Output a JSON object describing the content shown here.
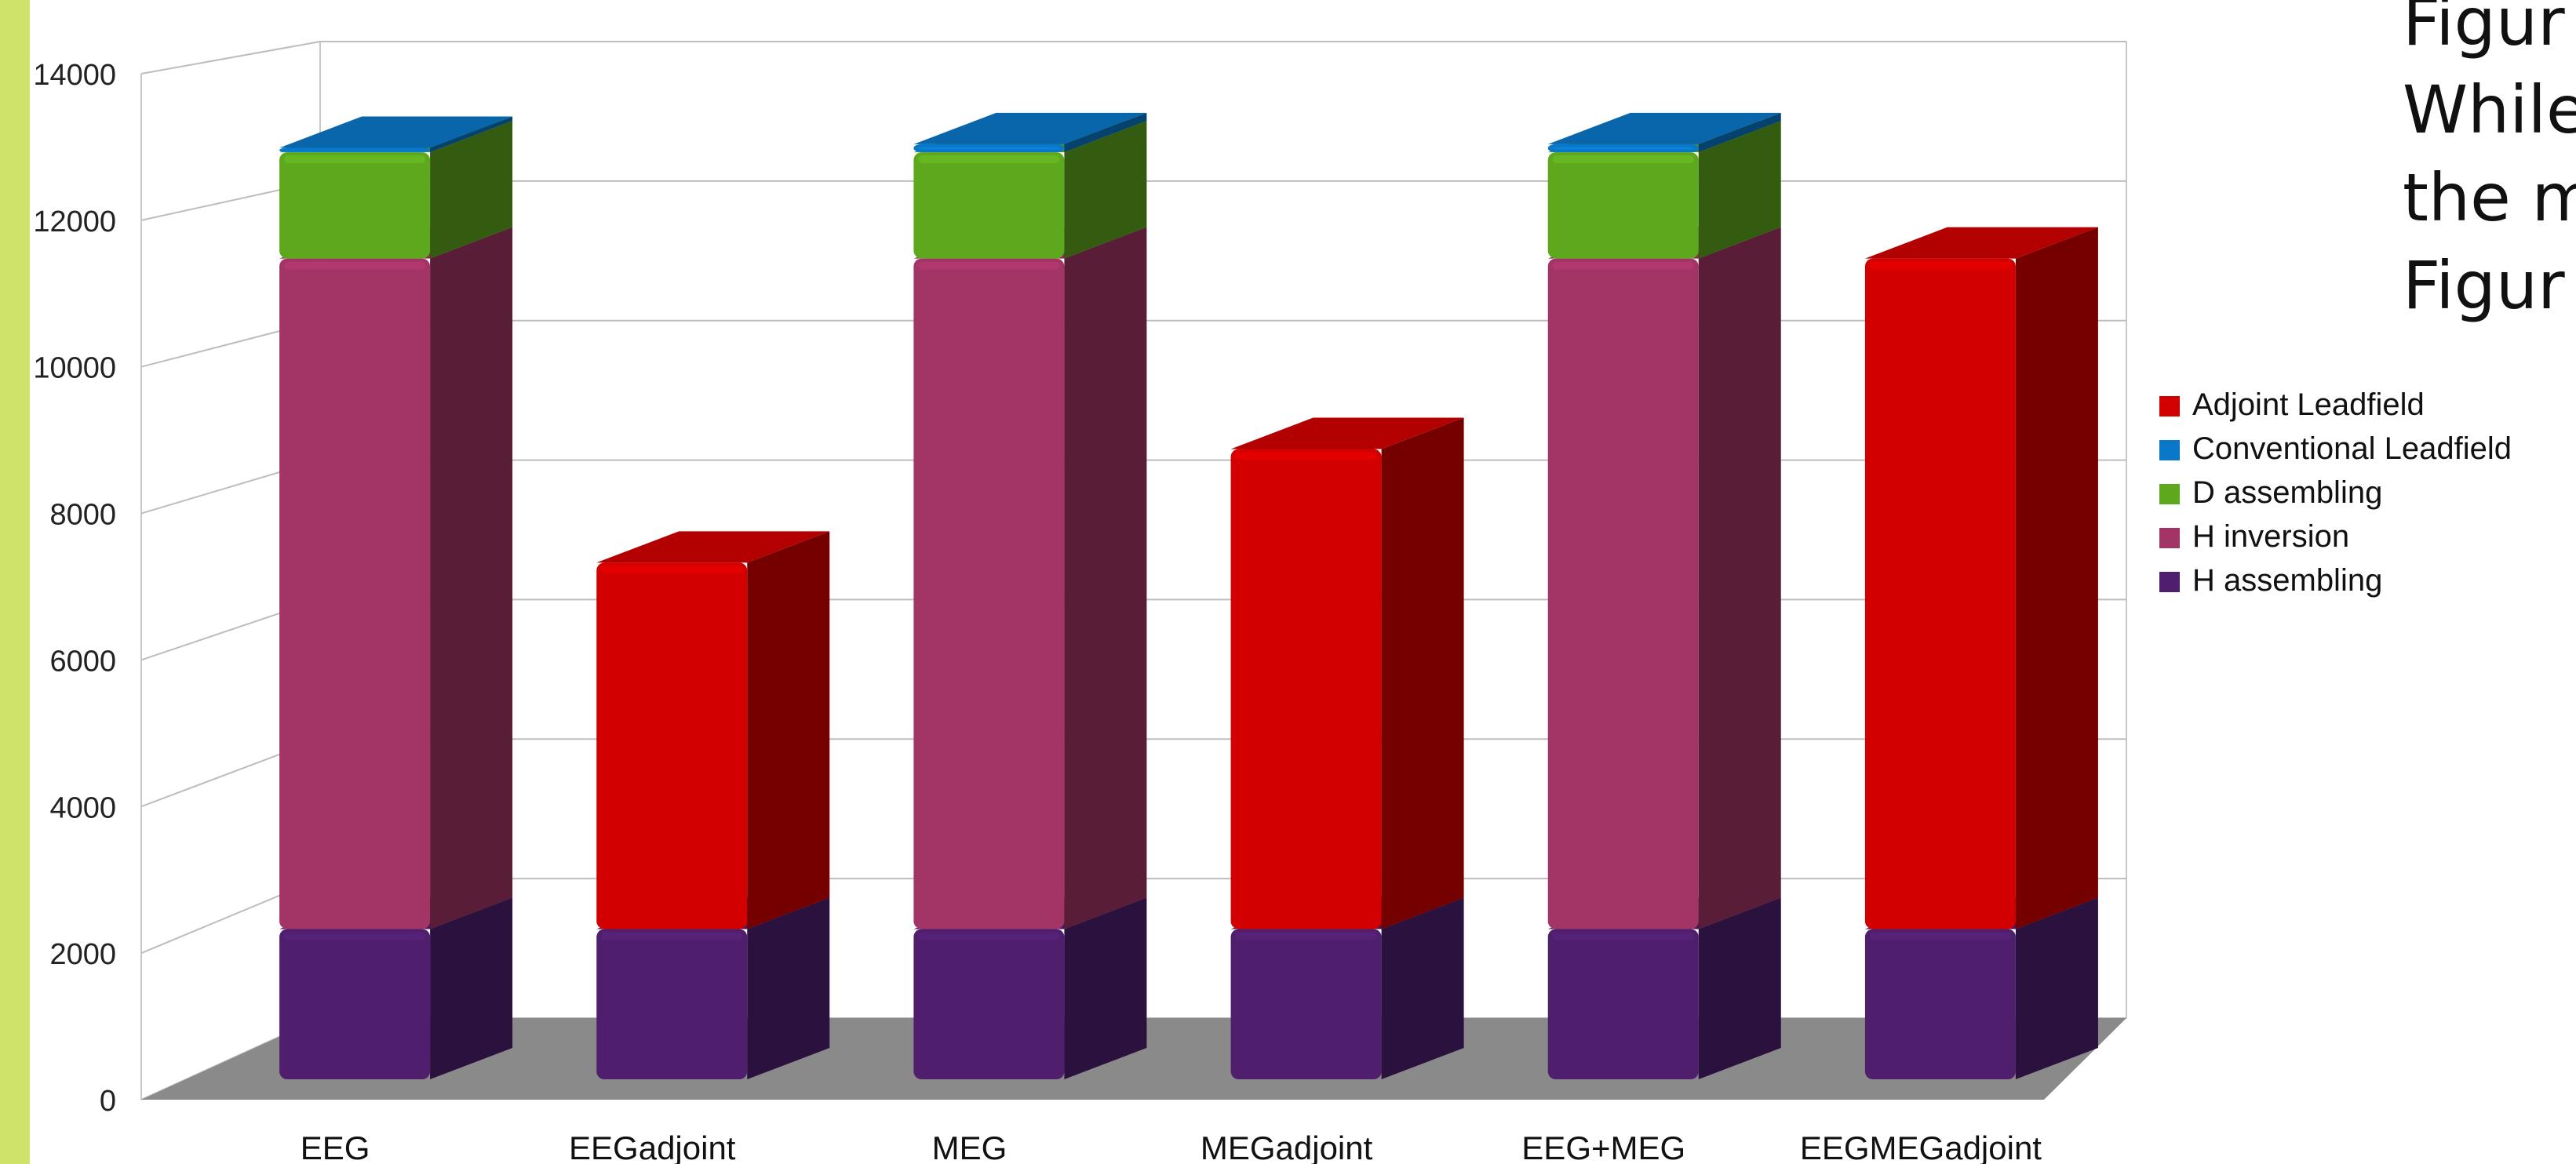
{
  "slide_text": [
    "Figur",
    "While",
    "the m",
    "Figur"
  ],
  "colors": {
    "accent_bar": "#cfe36a",
    "floor": "#8a8a8a",
    "grid": "#bdbdbd"
  },
  "chart_data": {
    "type": "bar",
    "stacked": true,
    "three_d": true,
    "title": "",
    "xlabel": "",
    "ylabel": "",
    "ylim": [
      0,
      14000
    ],
    "yticks": [
      0,
      2000,
      4000,
      6000,
      8000,
      10000,
      12000,
      14000
    ],
    "grid": true,
    "legend_position": "right",
    "categories": [
      "EEG",
      "EEGadjoint",
      "MEG",
      "MEGadjoint",
      "EEG+MEG",
      "EEGMEGadjoint"
    ],
    "series": [
      {
        "name": "H assembling",
        "color": "#4f1f6e",
        "values": [
          2050,
          2050,
          2050,
          2050,
          2050,
          2050
        ]
      },
      {
        "name": "H inversion",
        "color": "#a23466",
        "values": [
          9150,
          0,
          9150,
          0,
          9150,
          0
        ]
      },
      {
        "name": "D assembling",
        "color": "#5ea81e",
        "values": [
          1450,
          0,
          1450,
          0,
          1450,
          0
        ]
      },
      {
        "name": "Conventional Leadfield",
        "color": "#0a78c8",
        "values": [
          60,
          0,
          110,
          0,
          110,
          0
        ]
      },
      {
        "name": "Adjoint Leadfield",
        "color": "#d20000",
        "values": [
          0,
          5000,
          0,
          6550,
          0,
          9150
        ]
      }
    ],
    "legend_order": [
      "Adjoint Leadfield",
      "Conventional Leadfield",
      "D assembling",
      "H inversion",
      "H assembling"
    ]
  }
}
